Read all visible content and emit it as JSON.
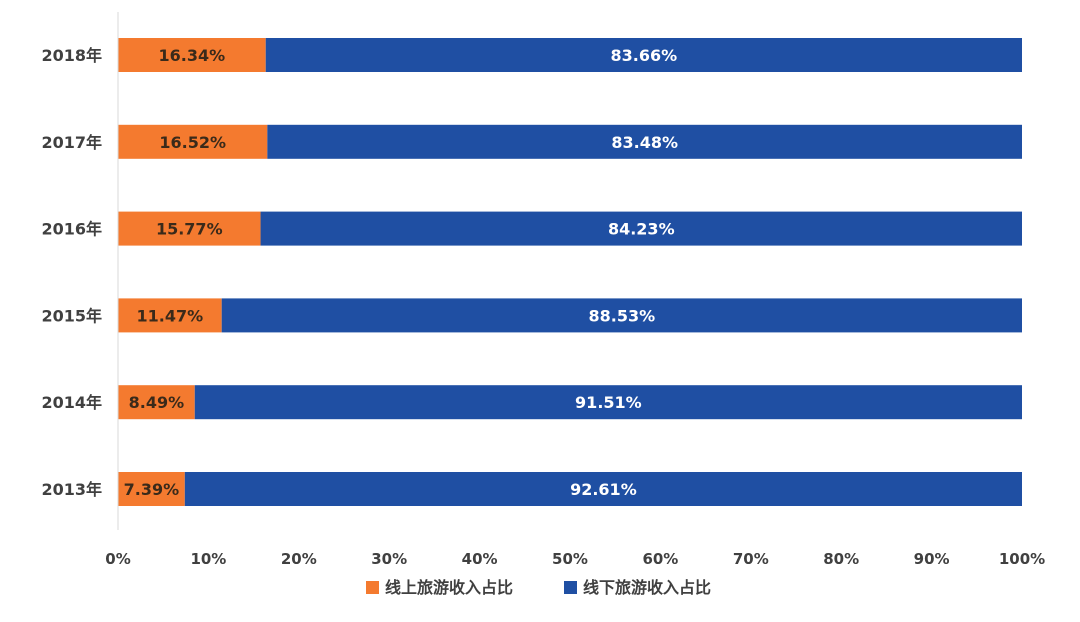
{
  "chart_data": {
    "type": "bar",
    "orientation": "horizontal",
    "stacked": true,
    "normalized": true,
    "categories": [
      "2018年",
      "2017年",
      "2016年",
      "2015年",
      "2014年",
      "2013年"
    ],
    "series": [
      {
        "name": "线上旅游收入占比",
        "color": "#f47a2f",
        "values": [
          16.34,
          16.52,
          15.77,
          11.47,
          8.49,
          7.39
        ],
        "labels": [
          "16.34%",
          "16.52%",
          "15.77%",
          "11.47%",
          "8.49%",
          "7.39%"
        ]
      },
      {
        "name": "线下旅游收入占比",
        "color": "#1f4fa3",
        "values": [
          83.66,
          83.48,
          84.23,
          88.53,
          91.51,
          92.61
        ],
        "labels": [
          "83.66%",
          "83.48%",
          "84.23%",
          "88.53%",
          "91.51%",
          "92.61%"
        ]
      }
    ],
    "x_ticks": [
      "0%",
      "10%",
      "20%",
      "30%",
      "40%",
      "50%",
      "60%",
      "70%",
      "80%",
      "90%",
      "100%"
    ],
    "xlim": [
      0,
      100
    ],
    "grid": false,
    "legend_position": "bottom-center",
    "title": "",
    "xlabel": "",
    "ylabel": ""
  }
}
